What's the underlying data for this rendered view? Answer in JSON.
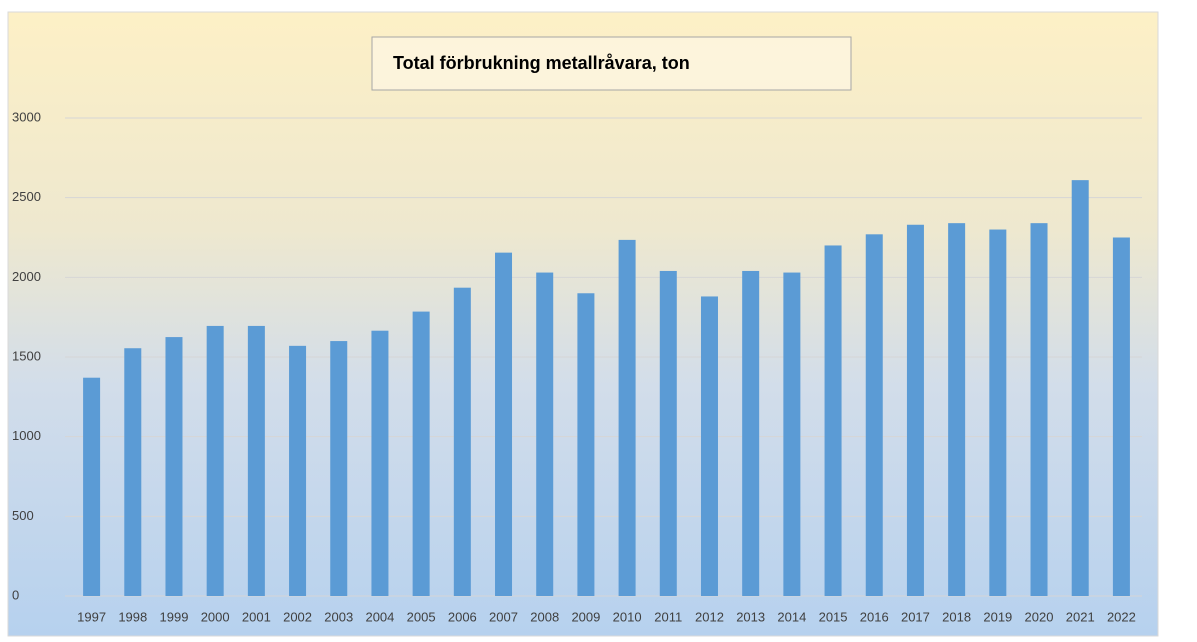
{
  "chart_data": {
    "type": "bar",
    "title": "Total förbrukning metallråvara, ton",
    "categories": [
      "1997",
      "1998",
      "1999",
      "2000",
      "2001",
      "2002",
      "2003",
      "2004",
      "2005",
      "2006",
      "2007",
      "2008",
      "2009",
      "2010",
      "2011",
      "2012",
      "2013",
      "2014",
      "2015",
      "2016",
      "2017",
      "2018",
      "2019",
      "2020",
      "2021",
      "2022"
    ],
    "values": [
      1370,
      1555,
      1625,
      1695,
      1695,
      1570,
      1600,
      1665,
      1785,
      1935,
      2155,
      2030,
      1900,
      2235,
      2040,
      1880,
      2040,
      2030,
      2200,
      2270,
      2330,
      2340,
      2300,
      2340,
      2610,
      2250
    ],
    "color": "#5b9bd5",
    "ylim": [
      0,
      3000
    ],
    "yticks": [
      0,
      500,
      1000,
      1500,
      2000,
      2500,
      3000
    ],
    "grid": true
  }
}
